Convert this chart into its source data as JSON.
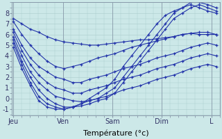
{
  "background_color": "#cce8e8",
  "grid_color": "#aacccc",
  "line_color": "#2233aa",
  "marker": "+",
  "markersize": 3,
  "linewidth": 0.8,
  "xlabel": "Température (°c)",
  "xlabel_fontsize": 8,
  "yticks": [
    -1,
    0,
    1,
    2,
    3,
    4,
    5,
    6,
    7,
    8
  ],
  "ylim": [
    -1.6,
    9.0
  ],
  "xtick_labels": [
    "Jeu",
    "Ven",
    "Sam",
    "Dim",
    "L"
  ],
  "xtick_positions": [
    0,
    72,
    144,
    216,
    288
  ],
  "xlim": [
    -2,
    300
  ],
  "n_points": 25,
  "series": [
    [
      7.5,
      7.0,
      6.5,
      6.2,
      5.8,
      5.5,
      5.3,
      5.2,
      5.1,
      5.0,
      5.0,
      5.1,
      5.2,
      5.3,
      5.4,
      5.5,
      5.5,
      5.6,
      5.7,
      5.8,
      6.0,
      6.1,
      6.0,
      6.0,
      6.0
    ],
    [
      7.2,
      6.0,
      5.0,
      4.2,
      3.5,
      3.0,
      2.8,
      3.0,
      3.2,
      3.5,
      3.8,
      4.0,
      4.2,
      4.5,
      4.8,
      5.0,
      5.2,
      5.4,
      5.6,
      5.8,
      6.0,
      6.1,
      6.2,
      6.2,
      6.0
    ],
    [
      6.5,
      5.0,
      3.8,
      3.0,
      2.5,
      2.0,
      1.8,
      1.5,
      1.5,
      1.8,
      2.0,
      2.2,
      2.5,
      2.8,
      3.0,
      3.2,
      3.5,
      3.8,
      4.0,
      4.2,
      4.5,
      4.8,
      5.0,
      5.2,
      5.0
    ],
    [
      6.2,
      4.5,
      3.2,
      2.2,
      1.5,
      1.0,
      0.8,
      0.5,
      0.5,
      0.8,
      1.0,
      1.2,
      1.5,
      1.8,
      2.0,
      2.2,
      2.5,
      2.8,
      3.0,
      3.2,
      3.5,
      3.8,
      4.0,
      4.2,
      4.0
    ],
    [
      5.8,
      4.0,
      2.5,
      1.5,
      0.8,
      0.2,
      0.0,
      -0.2,
      -0.3,
      -0.2,
      0.0,
      0.2,
      0.5,
      0.8,
      1.0,
      1.2,
      1.5,
      1.8,
      2.0,
      2.2,
      2.5,
      2.8,
      3.0,
      3.2,
      3.0
    ],
    [
      5.5,
      3.5,
      2.0,
      0.8,
      0.0,
      -0.5,
      -0.8,
      -0.8,
      -0.7,
      -0.5,
      -0.2,
      0.0,
      0.5,
      1.5,
      2.5,
      3.5,
      4.5,
      5.5,
      6.5,
      7.5,
      8.0,
      8.5,
      8.8,
      8.5,
      8.2
    ],
    [
      5.2,
      3.2,
      1.5,
      0.2,
      -0.5,
      -0.8,
      -1.0,
      -0.8,
      -0.5,
      -0.2,
      0.0,
      0.5,
      1.0,
      2.0,
      3.0,
      4.0,
      5.0,
      6.0,
      7.0,
      8.0,
      8.5,
      9.0,
      9.0,
      8.8,
      8.5
    ],
    [
      4.8,
      2.8,
      1.2,
      -0.2,
      -0.8,
      -1.0,
      -1.0,
      -0.8,
      -0.5,
      0.0,
      0.5,
      1.0,
      1.8,
      3.0,
      4.0,
      5.0,
      6.0,
      7.0,
      7.8,
      8.2,
      8.5,
      8.8,
      8.5,
      8.2,
      8.0
    ]
  ]
}
